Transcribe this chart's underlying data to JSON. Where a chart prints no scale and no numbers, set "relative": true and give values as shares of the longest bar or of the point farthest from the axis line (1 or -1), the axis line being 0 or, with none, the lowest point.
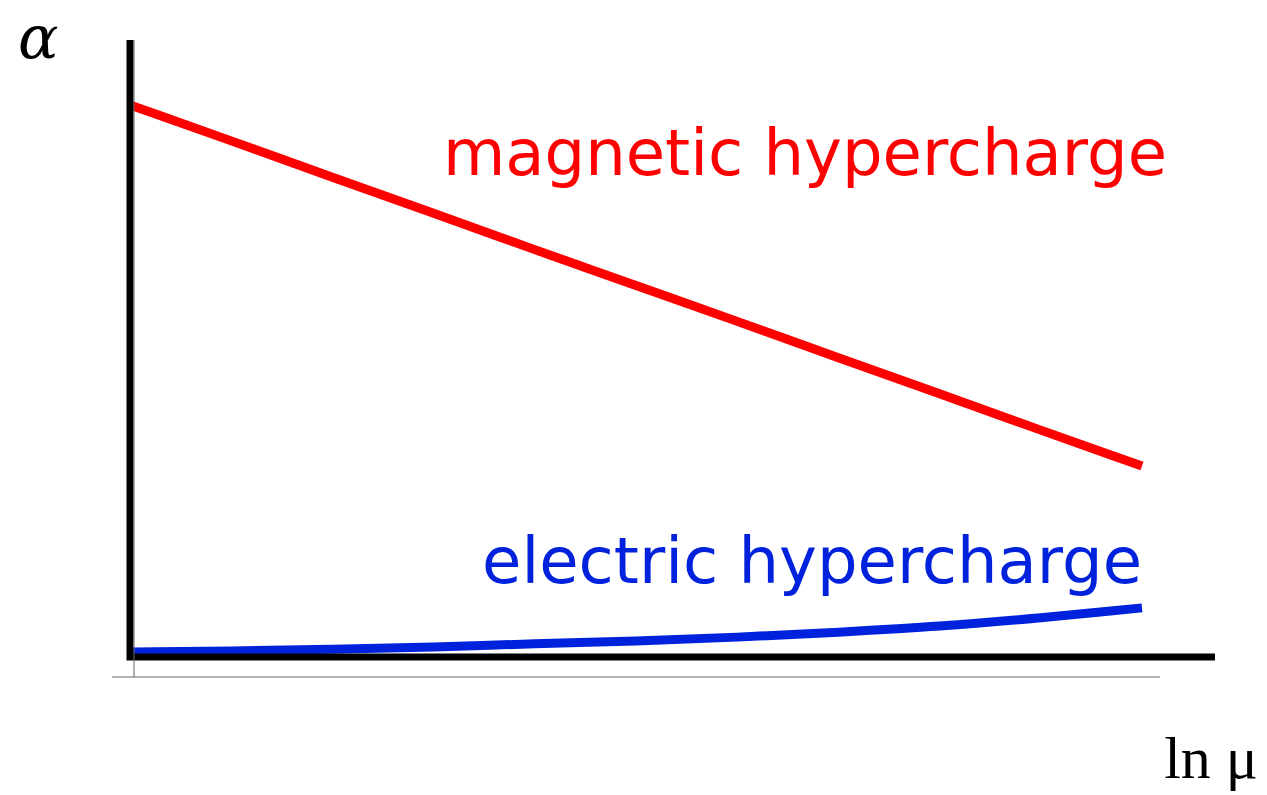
{
  "chart_data": {
    "type": "line",
    "relative": true,
    "xlabel": "ln μ",
    "ylabel": "α",
    "legend": false,
    "grid": false,
    "marker": "none",
    "line_style": "solid",
    "categories": [
      null,
      null,
      null,
      null,
      null,
      null,
      null,
      null,
      null,
      null,
      null
    ],
    "series": [
      {
        "name": "magnetic hypercharge",
        "color": "#ff0000",
        "values": [
          1,
          0.935,
          0.869,
          0.804,
          0.738,
          0.673,
          0.608,
          0.542,
          0.477,
          0.411,
          0.346
        ]
      },
      {
        "name": "electric hypercharge",
        "color": "#0022dd",
        "values": [
          0.009,
          0.011,
          0.014,
          0.018,
          0.024,
          0.029,
          0.036,
          0.045,
          0.056,
          0.071,
          0.089
        ]
      }
    ]
  }
}
